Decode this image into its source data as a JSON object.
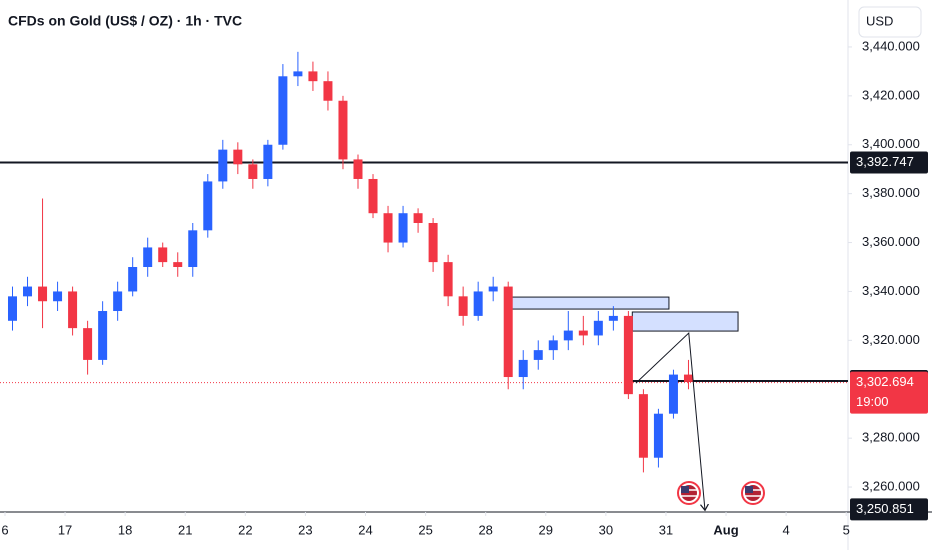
{
  "chart_data": {
    "type": "candlestick",
    "title": "CFDs on Gold (US$ / OZ) · 1h · TVC",
    "currency": "USD",
    "up_color": "#2962ff",
    "down_color": "#f23645",
    "x": [
      0.125,
      0.375,
      0.625,
      0.875,
      1.125,
      1.375,
      1.625,
      1.875,
      2.125,
      2.375,
      2.625,
      2.875,
      3.125,
      3.375,
      3.625,
      3.875,
      4.125,
      4.375,
      4.625,
      4.875,
      5.125,
      5.375,
      5.625,
      5.875,
      6.125,
      6.375,
      6.625,
      6.875,
      7.125,
      7.375,
      7.625,
      7.875,
      8.125,
      8.375,
      8.625,
      8.875,
      9.125,
      9.375,
      9.625,
      9.875,
      10.125,
      10.375,
      10.625,
      10.875,
      11.125,
      11.375
    ],
    "open": [
      3328,
      3338,
      3342,
      3336,
      3340,
      3325,
      3312,
      3332,
      3340,
      3350,
      3358,
      3352,
      3350,
      3365,
      3385,
      3398,
      3392,
      3386,
      3400,
      3428,
      3430,
      3426,
      3418,
      3394,
      3386,
      3372,
      3360,
      3372,
      3368,
      3352,
      3338,
      3330,
      3340,
      3342,
      3305,
      3312,
      3316,
      3320,
      3324,
      3322,
      3328,
      3330,
      3298,
      3272,
      3290,
      3306
    ],
    "high": [
      3342,
      3346,
      3378,
      3344,
      3342,
      3328,
      3336,
      3344,
      3354,
      3362,
      3360,
      3356,
      3368,
      3388,
      3402,
      3401,
      3394,
      3402,
      3433,
      3438,
      3434,
      3430,
      3420,
      3396,
      3388,
      3375,
      3375,
      3374,
      3370,
      3355,
      3342,
      3344,
      3346,
      3344,
      3316,
      3320,
      3322,
      3332,
      3330,
      3332,
      3334,
      3332,
      3300,
      3292,
      3308,
      3312
    ],
    "low": [
      3324,
      3334,
      3325,
      3332,
      3322,
      3306,
      3310,
      3328,
      3338,
      3346,
      3350,
      3346,
      3346,
      3362,
      3382,
      3388,
      3382,
      3383,
      3398,
      3424,
      3422,
      3414,
      3390,
      3382,
      3370,
      3356,
      3358,
      3364,
      3348,
      3334,
      3326,
      3328,
      3336,
      3300,
      3300,
      3308,
      3312,
      3316,
      3318,
      3318,
      3324,
      3296,
      3266,
      3268,
      3288,
      3300
    ],
    "close": [
      3338,
      3342,
      3336,
      3340,
      3325,
      3312,
      3332,
      3340,
      3350,
      3358,
      3352,
      3350,
      3365,
      3385,
      3398,
      3392,
      3386,
      3400,
      3428,
      3430,
      3426,
      3418,
      3394,
      3386,
      3372,
      3360,
      3372,
      3368,
      3352,
      3338,
      3330,
      3340,
      3342,
      3305,
      3312,
      3316,
      3320,
      3324,
      3322,
      3328,
      3330,
      3298,
      3272,
      3290,
      3306,
      3303
    ],
    "xlim": [
      -0.083,
      14.03
    ],
    "xticks": [
      {
        "value": 0,
        "label": "6"
      },
      {
        "value": 1,
        "label": "17"
      },
      {
        "value": 2,
        "label": "18"
      },
      {
        "value": 3,
        "label": "21"
      },
      {
        "value": 4,
        "label": "22"
      },
      {
        "value": 5,
        "label": "23"
      },
      {
        "value": 6,
        "label": "24"
      },
      {
        "value": 7,
        "label": "25"
      },
      {
        "value": 8,
        "label": "28"
      },
      {
        "value": 9,
        "label": "29"
      },
      {
        "value": 10,
        "label": "30"
      },
      {
        "value": 11,
        "label": "31"
      },
      {
        "value": 12,
        "label": "Aug"
      },
      {
        "value": 13,
        "label": "4"
      },
      {
        "value": 14,
        "label": "5"
      }
    ],
    "ylim": [
      3249.8,
      3459.2
    ],
    "yticks": [
      {
        "value": 3260,
        "label": "3,260.000"
      },
      {
        "value": 3280,
        "label": "3,280.000"
      },
      {
        "value": 3320,
        "label": "3,320.000"
      },
      {
        "value": 3340,
        "label": "3,340.000"
      },
      {
        "value": 3360,
        "label": "3,360.000"
      },
      {
        "value": 3380,
        "label": "3,380.000"
      },
      {
        "value": 3400,
        "label": "3,400.000"
      },
      {
        "value": 3420,
        "label": "3,420.000"
      },
      {
        "value": 3440,
        "label": "3,440.000"
      }
    ],
    "levels": [
      {
        "value": 3392.747,
        "label": "3,392.747",
        "from": -0.083
      },
      {
        "value": 3303.385,
        "label": "3,303.385",
        "from": 10.4
      }
    ],
    "current_price": {
      "value": 3302.694,
      "label": "3,302.694",
      "countdown": "19:00"
    },
    "low_label": {
      "value": 3250.851,
      "label": "3,250.851"
    },
    "zones": [
      {
        "x": [
          8.4,
          11.05
        ],
        "y": [
          3332.8,
          3337.7
        ]
      },
      {
        "x": [
          10.44,
          12.2
        ],
        "y": [
          3323.8,
          3331.6
        ]
      }
    ],
    "arrow": {
      "x": [
        10.5,
        11.38,
        11.65
      ],
      "y": [
        3302.5,
        3323,
        3250.5
      ]
    }
  }
}
